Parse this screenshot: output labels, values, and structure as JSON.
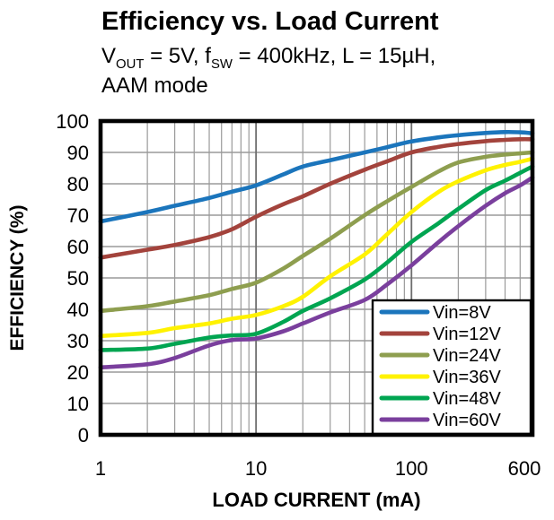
{
  "header": {
    "title": "Efficiency vs. Load Current",
    "subtitle_segments": [
      {
        "text": "V"
      },
      {
        "text": "OUT",
        "sub": true
      },
      {
        "text": " = 5V, f"
      },
      {
        "text": "SW",
        "sub": true
      },
      {
        "text": " = 400kHz, L = 15µH,"
      }
    ],
    "subtitle_line2": "AAM mode"
  },
  "chart_data": {
    "type": "line",
    "x_scale": "log",
    "title": "Efficiency vs. Load Current",
    "xlabel": "LOAD CURRENT  (mA)",
    "ylabel": "EFFICIENCY  (%)",
    "xlim": [
      1,
      600
    ],
    "ylim": [
      0,
      100
    ],
    "y_ticks": [
      0,
      10,
      20,
      30,
      40,
      50,
      60,
      70,
      80,
      90,
      100
    ],
    "x_ticks": [
      {
        "value": 1,
        "label": "1"
      },
      {
        "value": 10,
        "label": "10"
      },
      {
        "value": 100,
        "label": "100"
      },
      {
        "value": 600,
        "label": "600"
      }
    ],
    "grid": true,
    "legend_position": "lower-right",
    "x": [
      1,
      2,
      3,
      5,
      7,
      10,
      15,
      20,
      30,
      50,
      70,
      100,
      150,
      200,
      300,
      400,
      500,
      600
    ],
    "series": [
      {
        "name": "Vin=8V",
        "color": "#1b75bc",
        "values": [
          68,
          71,
          73,
          75.5,
          77.5,
          79.5,
          83,
          85.5,
          87.5,
          90,
          91.7,
          93.5,
          94.8,
          95.5,
          96.2,
          96.5,
          96.4,
          96.1
        ]
      },
      {
        "name": "Vin=12V",
        "color": "#a3433c",
        "values": [
          56.5,
          59,
          60.5,
          63,
          65.5,
          69.5,
          73.5,
          76,
          80,
          84.5,
          87.2,
          90,
          91.8,
          92.7,
          93.6,
          94,
          94.2,
          94.2
        ]
      },
      {
        "name": "Vin=24V",
        "color": "#8e9e4f",
        "values": [
          39.5,
          41,
          42.5,
          44.5,
          46.5,
          48.5,
          53,
          57,
          62.5,
          70,
          74.5,
          79,
          84,
          86.8,
          88.6,
          89.3,
          89.7,
          90
        ]
      },
      {
        "name": "Vin=36V",
        "color": "#fff200",
        "values": [
          31.5,
          32.5,
          34,
          35.5,
          37,
          38.2,
          41,
          44,
          50.5,
          57.5,
          64,
          71,
          77.5,
          80.8,
          84.3,
          86,
          87,
          88
        ]
      },
      {
        "name": "Vin=48V",
        "color": "#00a551",
        "values": [
          27,
          27.5,
          29,
          31,
          31.7,
          32.2,
          36,
          39.5,
          43.5,
          49.5,
          55,
          61.5,
          67.5,
          72,
          78,
          81,
          83.5,
          85.5
        ]
      },
      {
        "name": "Vin=60V",
        "color": "#7a3f9d",
        "values": [
          21.5,
          22.5,
          24.5,
          28.5,
          30.2,
          30.7,
          33,
          35.5,
          39,
          43,
          48,
          54,
          61.5,
          66.5,
          73,
          77,
          79.5,
          82
        ]
      }
    ],
    "colors": {
      "grid_minor": "#9a9a9a",
      "grid_major": "#6e6e6e",
      "axis_border": "#000000",
      "text": "#000000",
      "legend_bg": "#ffffff"
    }
  }
}
